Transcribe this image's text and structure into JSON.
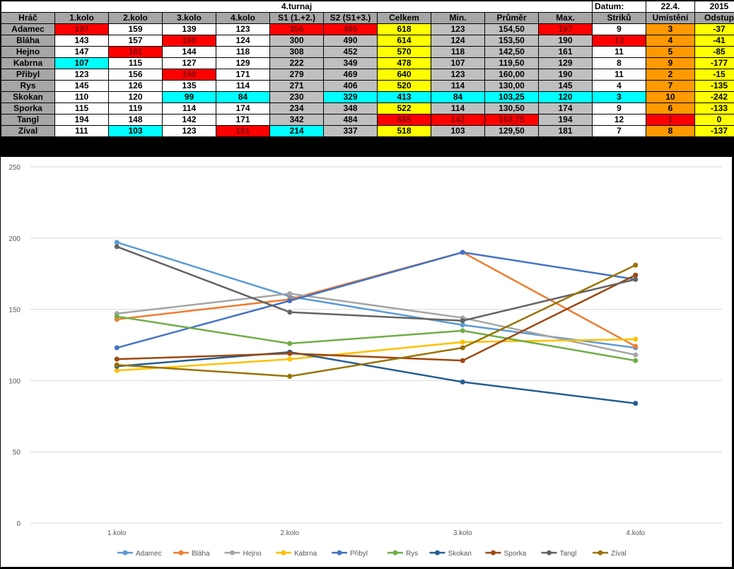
{
  "table": {
    "title": "4.turnaj",
    "date_label": "Datum:",
    "date_value": "22.4.",
    "year": "2015",
    "headers": [
      "Hráč",
      "1.kolo",
      "2.kolo",
      "3.kolo",
      "4.kolo",
      "S1 (1.+2.)",
      "S2 (S1+3.)",
      "Celkem",
      "Min.",
      "Průměr",
      "Max.",
      "Striků",
      "Umístění",
      "Odstup"
    ],
    "rows": [
      {
        "cells": [
          "Adamec",
          "197",
          "159",
          "139",
          "123",
          "356",
          "495",
          "618",
          "123",
          "154,50",
          "197",
          "9",
          "3",
          "-37"
        ],
        "styles": [
          "name",
          "red",
          "white",
          "white",
          "white",
          "red",
          "red",
          "yellow",
          "gray",
          "gray",
          "red",
          "white",
          "orange",
          "yellow"
        ]
      },
      {
        "cells": [
          "Bláha",
          "143",
          "157",
          "190",
          "124",
          "300",
          "490",
          "614",
          "124",
          "153,50",
          "190",
          "13",
          "4",
          "-41"
        ],
        "styles": [
          "name",
          "white",
          "white",
          "red",
          "white",
          "gray",
          "gray",
          "yellow",
          "gray",
          "gray",
          "gray",
          "red",
          "orange",
          "yellow"
        ]
      },
      {
        "cells": [
          "Hejno",
          "147",
          "161",
          "144",
          "118",
          "308",
          "452",
          "570",
          "118",
          "142,50",
          "161",
          "11",
          "5",
          "-85"
        ],
        "styles": [
          "name",
          "white",
          "red",
          "white",
          "white",
          "gray",
          "gray",
          "yellow",
          "gray",
          "gray",
          "gray",
          "white",
          "orange",
          "yellow"
        ]
      },
      {
        "cells": [
          "Kabrna",
          "107",
          "115",
          "127",
          "129",
          "222",
          "349",
          "478",
          "107",
          "119,50",
          "129",
          "8",
          "9",
          "-177"
        ],
        "styles": [
          "name",
          "cyan",
          "white",
          "white",
          "white",
          "gray",
          "gray",
          "yellow",
          "gray",
          "gray",
          "gray",
          "white",
          "orange",
          "yellow"
        ]
      },
      {
        "cells": [
          "Přibyl",
          "123",
          "156",
          "190",
          "171",
          "279",
          "469",
          "640",
          "123",
          "160,00",
          "190",
          "11",
          "2",
          "-15"
        ],
        "styles": [
          "name",
          "white",
          "white",
          "red",
          "white",
          "gray",
          "gray",
          "yellow",
          "gray",
          "gray",
          "gray",
          "white",
          "orange",
          "yellow"
        ]
      },
      {
        "cells": [
          "Rys",
          "145",
          "126",
          "135",
          "114",
          "271",
          "406",
          "520",
          "114",
          "130,00",
          "145",
          "4",
          "7",
          "-135"
        ],
        "styles": [
          "name",
          "white",
          "white",
          "white",
          "white",
          "gray",
          "gray",
          "yellow",
          "gray",
          "gray",
          "gray",
          "white",
          "orange",
          "yellow"
        ]
      },
      {
        "cells": [
          "Skokan",
          "110",
          "120",
          "99",
          "84",
          "230",
          "329",
          "413",
          "84",
          "103,25",
          "120",
          "3",
          "10",
          "-242"
        ],
        "styles": [
          "name",
          "white",
          "white",
          "cyan",
          "cyan",
          "gray",
          "cyan",
          "cyan",
          "cyan",
          "cyan",
          "cyan",
          "cyan",
          "orange",
          "yellow"
        ]
      },
      {
        "cells": [
          "Sporka",
          "115",
          "119",
          "114",
          "174",
          "234",
          "348",
          "522",
          "114",
          "130,50",
          "174",
          "9",
          "6",
          "-133"
        ],
        "styles": [
          "name",
          "white",
          "white",
          "white",
          "white",
          "gray",
          "gray",
          "yellow",
          "gray",
          "gray",
          "gray",
          "white",
          "orange",
          "yellow"
        ]
      },
      {
        "cells": [
          "Tangl",
          "194",
          "148",
          "142",
          "171",
          "342",
          "484",
          "655",
          "142",
          "163,75",
          "194",
          "12",
          "1",
          "0"
        ],
        "styles": [
          "name",
          "white",
          "white",
          "white",
          "white",
          "gray",
          "gray",
          "red",
          "red",
          "red",
          "gray",
          "white",
          "red",
          "yellow"
        ]
      },
      {
        "cells": [
          "Zíval",
          "111",
          "103",
          "123",
          "181",
          "214",
          "337",
          "518",
          "103",
          "129,50",
          "181",
          "7",
          "8",
          "-137"
        ],
        "styles": [
          "name",
          "white",
          "cyan",
          "white",
          "red",
          "cyan",
          "gray",
          "yellow",
          "gray",
          "gray",
          "gray",
          "white",
          "orange",
          "yellow"
        ]
      }
    ]
  },
  "chart_data": {
    "type": "line",
    "categories": [
      "1.kolo",
      "2.kolo",
      "3.kolo",
      "4.kolo"
    ],
    "ylim": [
      0,
      250
    ],
    "yticks": [
      "0",
      "50",
      "100",
      "150",
      "200",
      "250"
    ],
    "ytick_values": [
      0,
      50,
      100,
      150,
      200,
      250
    ],
    "grid": true,
    "legend": "bottom",
    "series": [
      {
        "name": "Adamec",
        "values": [
          197,
          159,
          139,
          123
        ],
        "color": "#5b9bd5"
      },
      {
        "name": "Bláha",
        "values": [
          143,
          157,
          190,
          124
        ],
        "color": "#ed7d31"
      },
      {
        "name": "Hejno",
        "values": [
          147,
          161,
          144,
          118
        ],
        "color": "#a5a5a5"
      },
      {
        "name": "Kabrna",
        "values": [
          107,
          115,
          127,
          129
        ],
        "color": "#ffc000"
      },
      {
        "name": "Přibyl",
        "values": [
          123,
          156,
          190,
          171
        ],
        "color": "#4472c4"
      },
      {
        "name": "Rys",
        "values": [
          145,
          126,
          135,
          114
        ],
        "color": "#70ad47"
      },
      {
        "name": "Skokan",
        "values": [
          110,
          120,
          99,
          84
        ],
        "color": "#255e91"
      },
      {
        "name": "Sporka",
        "values": [
          115,
          119,
          114,
          174
        ],
        "color": "#9e480e"
      },
      {
        "name": "Tangl",
        "values": [
          194,
          148,
          142,
          171
        ],
        "color": "#636363"
      },
      {
        "name": "Zíval",
        "values": [
          111,
          103,
          123,
          181
        ],
        "color": "#997300"
      }
    ]
  }
}
